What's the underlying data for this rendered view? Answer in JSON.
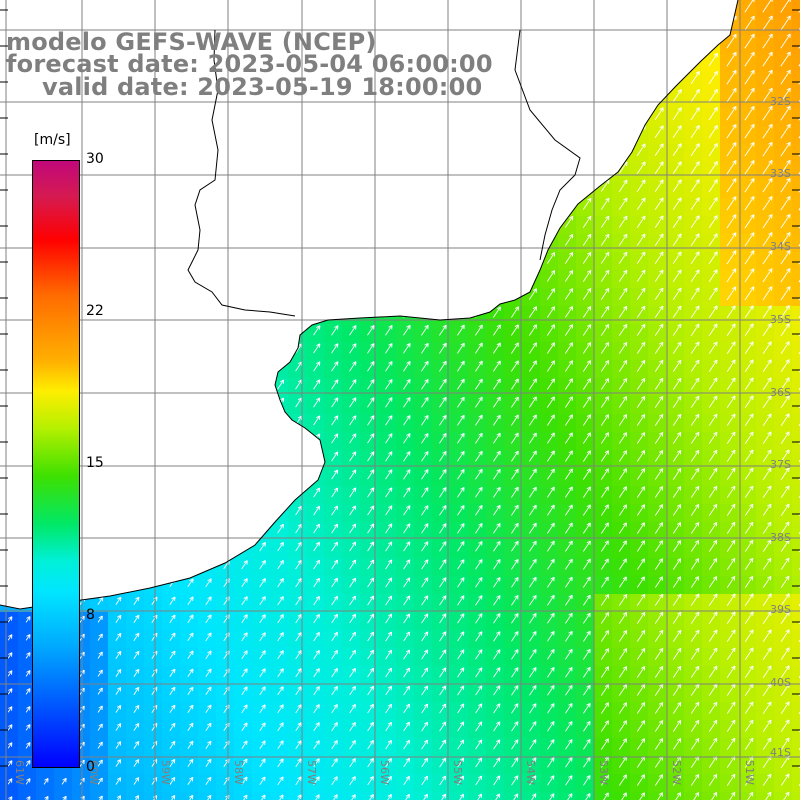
{
  "header": {
    "line1": "modelo GEFS-WAVE (NCEP)",
    "line2": "forecast date: 2023-05-04 06:00:00",
    "line3": "valid date: 2023-05-19 18:00:00"
  },
  "colorbar": {
    "unit": "[m/s]",
    "ticks": [
      "30",
      "22",
      "15",
      "8",
      "0"
    ],
    "tick_values": [
      30,
      22,
      15,
      8,
      0
    ],
    "range": [
      0,
      30
    ],
    "colors": [
      "#0000ff",
      "#0055ff",
      "#00aaff",
      "#00e6ff",
      "#00f0d8",
      "#00e868",
      "#3ee000",
      "#b6f000",
      "#ffee00",
      "#ffb000",
      "#ff6a00",
      "#ff0000",
      "#d61a50",
      "#c0087a"
    ]
  },
  "axes": {
    "lat_labels": [
      "32S",
      "33S",
      "34S",
      "35S",
      "36S",
      "37S",
      "38S",
      "39S",
      "40S",
      "41S"
    ],
    "lon_labels": [
      "61W",
      "60W",
      "59W",
      "58W",
      "57W",
      "56W",
      "55W",
      "54W",
      "53W",
      "52W",
      "51W"
    ]
  },
  "field": {
    "variable": "wind speed",
    "units": "m/s"
  },
  "colors": {
    "header_text": "#7f7f7f",
    "land": "#ffffff",
    "grid": "#808080",
    "coastline": "#000000",
    "arrows": "#ffffff"
  }
}
